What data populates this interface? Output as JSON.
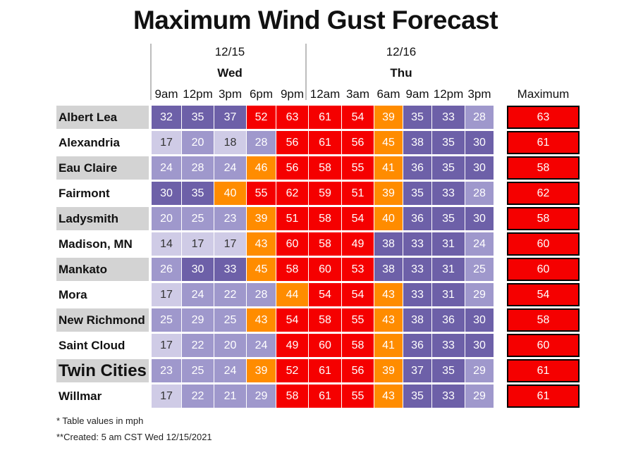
{
  "title": "Maximum Wind Gust Forecast",
  "days": [
    {
      "date": "12/15",
      "day": "Wed"
    },
    {
      "date": "12/16",
      "day": "Thu"
    }
  ],
  "times": [
    "9am",
    "12pm",
    "3pm",
    "6pm",
    "9pm",
    "12am",
    "3am",
    "6am",
    "9am",
    "12pm",
    "3pm"
  ],
  "max_header": "Maximum",
  "colors": {
    "red": "#f50000",
    "orange": "#ff8c00",
    "purple_dark": "#6d60a8",
    "purple_mid": "#9f98cc",
    "purple_light": "#cfcbe6",
    "label_shade": "#d3d3d3"
  },
  "chart_data": {
    "type": "table",
    "title": "Maximum Wind Gust Forecast",
    "units": "mph",
    "columns": [
      "9am",
      "12pm",
      "3pm",
      "6pm",
      "9pm",
      "12am",
      "3am",
      "6am",
      "9am",
      "12pm",
      "3pm"
    ],
    "rows": [
      {
        "city": "Albert Lea",
        "values": [
          32,
          35,
          37,
          52,
          63,
          61,
          54,
          39,
          35,
          33,
          28
        ],
        "max": 63
      },
      {
        "city": "Alexandria",
        "values": [
          17,
          20,
          18,
          28,
          56,
          61,
          56,
          45,
          38,
          35,
          30
        ],
        "max": 61
      },
      {
        "city": "Eau Claire",
        "values": [
          24,
          28,
          24,
          46,
          56,
          58,
          55,
          41,
          36,
          35,
          30
        ],
        "max": 58
      },
      {
        "city": "Fairmont",
        "values": [
          30,
          35,
          40,
          55,
          62,
          59,
          51,
          39,
          35,
          33,
          28
        ],
        "max": 62
      },
      {
        "city": "Ladysmith",
        "values": [
          20,
          25,
          23,
          39,
          51,
          58,
          54,
          40,
          36,
          35,
          30
        ],
        "max": 58
      },
      {
        "city": "Madison, MN",
        "values": [
          14,
          17,
          17,
          43,
          60,
          58,
          49,
          38,
          33,
          31,
          24
        ],
        "max": 60
      },
      {
        "city": "Mankato",
        "values": [
          26,
          30,
          33,
          45,
          58,
          60,
          53,
          38,
          33,
          31,
          25
        ],
        "max": 60
      },
      {
        "city": "Mora",
        "values": [
          17,
          24,
          22,
          28,
          44,
          54,
          54,
          43,
          33,
          31,
          29
        ],
        "max": 54
      },
      {
        "city": "New Richmond",
        "values": [
          25,
          29,
          25,
          43,
          54,
          58,
          55,
          43,
          38,
          36,
          30
        ],
        "max": 58
      },
      {
        "city": "Saint Cloud",
        "values": [
          17,
          22,
          20,
          24,
          49,
          60,
          58,
          41,
          36,
          33,
          30
        ],
        "max": 60
      },
      {
        "city": "Twin Cities",
        "values": [
          23,
          25,
          24,
          39,
          52,
          61,
          56,
          39,
          37,
          35,
          29
        ],
        "max": 61
      },
      {
        "city": "Willmar",
        "values": [
          17,
          22,
          21,
          29,
          58,
          61,
          55,
          43,
          35,
          33,
          29
        ],
        "max": 61
      }
    ]
  },
  "footnotes": [
    "* Table values in mph",
    "**Created: 5 am CST Wed 12/15/2021"
  ]
}
